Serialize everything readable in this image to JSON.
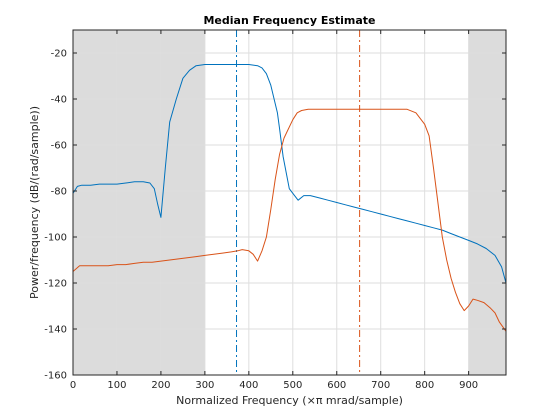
{
  "chart_data": {
    "type": "line",
    "title": "Median Frequency Estimate",
    "xlabel": "Normalized Frequency  (×π mrad/sample)",
    "ylabel": "Power/frequency (dB/(rad/sample))",
    "xlim": [
      0,
      985
    ],
    "ylim": [
      -160,
      -10
    ],
    "xticks": [
      0,
      100,
      200,
      300,
      400,
      500,
      600,
      700,
      800,
      900
    ],
    "yticks": [
      -160,
      -140,
      -120,
      -100,
      -80,
      -60,
      -40,
      -20
    ],
    "grid": true,
    "colors": {
      "series1": "#0072BD",
      "series2": "#D95319",
      "shade": "#dcdcdc",
      "grid": "#dedede",
      "axis": "#262626"
    },
    "shaded_regions": [
      {
        "x": [
          0,
          300
        ]
      },
      {
        "x": [
          900,
          985
        ]
      }
    ],
    "vlines": [
      {
        "x": 372,
        "color": "#0072BD",
        "style": "dashdot"
      },
      {
        "x": 652,
        "color": "#D95319",
        "style": "dashdot"
      }
    ],
    "series": [
      {
        "color": "#0072BD",
        "points": [
          [
            0,
            -81
          ],
          [
            10,
            -78
          ],
          [
            20,
            -77.5
          ],
          [
            40,
            -77.5
          ],
          [
            60,
            -77
          ],
          [
            80,
            -77
          ],
          [
            100,
            -77
          ],
          [
            120,
            -76.5
          ],
          [
            140,
            -76
          ],
          [
            160,
            -76
          ],
          [
            175,
            -76.5
          ],
          [
            185,
            -79
          ],
          [
            193,
            -86
          ],
          [
            200,
            -91.5
          ],
          [
            210,
            -70
          ],
          [
            220,
            -50
          ],
          [
            235,
            -40
          ],
          [
            250,
            -31
          ],
          [
            265,
            -27.5
          ],
          [
            280,
            -25.5
          ],
          [
            300,
            -25
          ],
          [
            320,
            -25
          ],
          [
            340,
            -25
          ],
          [
            360,
            -25
          ],
          [
            380,
            -25
          ],
          [
            400,
            -25
          ],
          [
            420,
            -25.5
          ],
          [
            430,
            -26.5
          ],
          [
            440,
            -29
          ],
          [
            450,
            -34
          ],
          [
            460,
            -42
          ],
          [
            465,
            -46
          ],
          [
            470,
            -53
          ],
          [
            478,
            -65
          ],
          [
            485,
            -72
          ],
          [
            492,
            -79
          ],
          [
            500,
            -81
          ],
          [
            512,
            -84
          ],
          [
            525,
            -82
          ],
          [
            540,
            -82
          ],
          [
            560,
            -83
          ],
          [
            580,
            -84
          ],
          [
            600,
            -85
          ],
          [
            620,
            -86
          ],
          [
            640,
            -87
          ],
          [
            660,
            -88
          ],
          [
            680,
            -89
          ],
          [
            700,
            -90
          ],
          [
            720,
            -91
          ],
          [
            740,
            -92
          ],
          [
            760,
            -93
          ],
          [
            780,
            -94
          ],
          [
            800,
            -95
          ],
          [
            820,
            -96
          ],
          [
            840,
            -97
          ],
          [
            860,
            -98.5
          ],
          [
            880,
            -100
          ],
          [
            900,
            -101.5
          ],
          [
            920,
            -103
          ],
          [
            940,
            -105
          ],
          [
            960,
            -108
          ],
          [
            975,
            -113
          ],
          [
            985,
            -120
          ]
        ]
      },
      {
        "color": "#D95319",
        "points": [
          [
            0,
            -115
          ],
          [
            15,
            -112.5
          ],
          [
            40,
            -112.5
          ],
          [
            60,
            -112.5
          ],
          [
            80,
            -112.5
          ],
          [
            100,
            -112
          ],
          [
            120,
            -112
          ],
          [
            140,
            -111.5
          ],
          [
            160,
            -111
          ],
          [
            180,
            -111
          ],
          [
            200,
            -110.5
          ],
          [
            220,
            -110
          ],
          [
            240,
            -109.5
          ],
          [
            260,
            -109
          ],
          [
            280,
            -108.5
          ],
          [
            300,
            -108
          ],
          [
            320,
            -107.5
          ],
          [
            340,
            -107
          ],
          [
            360,
            -106.5
          ],
          [
            375,
            -106
          ],
          [
            385,
            -105.5
          ],
          [
            400,
            -106
          ],
          [
            410,
            -107.5
          ],
          [
            420,
            -110.5
          ],
          [
            430,
            -106
          ],
          [
            440,
            -100
          ],
          [
            450,
            -88
          ],
          [
            460,
            -75
          ],
          [
            470,
            -64
          ],
          [
            480,
            -57
          ],
          [
            490,
            -53
          ],
          [
            500,
            -49
          ],
          [
            510,
            -46
          ],
          [
            520,
            -45
          ],
          [
            535,
            -44.5
          ],
          [
            560,
            -44.5
          ],
          [
            600,
            -44.5
          ],
          [
            640,
            -44.5
          ],
          [
            680,
            -44.5
          ],
          [
            720,
            -44.5
          ],
          [
            760,
            -44.5
          ],
          [
            780,
            -46
          ],
          [
            800,
            -51
          ],
          [
            810,
            -56
          ],
          [
            820,
            -70
          ],
          [
            830,
            -85
          ],
          [
            840,
            -100
          ],
          [
            850,
            -110
          ],
          [
            860,
            -118
          ],
          [
            870,
            -124
          ],
          [
            880,
            -129
          ],
          [
            890,
            -132
          ],
          [
            900,
            -130
          ],
          [
            910,
            -127
          ],
          [
            920,
            -127.5
          ],
          [
            935,
            -128.5
          ],
          [
            950,
            -131
          ],
          [
            960,
            -133
          ],
          [
            970,
            -137
          ],
          [
            985,
            -141
          ]
        ]
      }
    ]
  }
}
